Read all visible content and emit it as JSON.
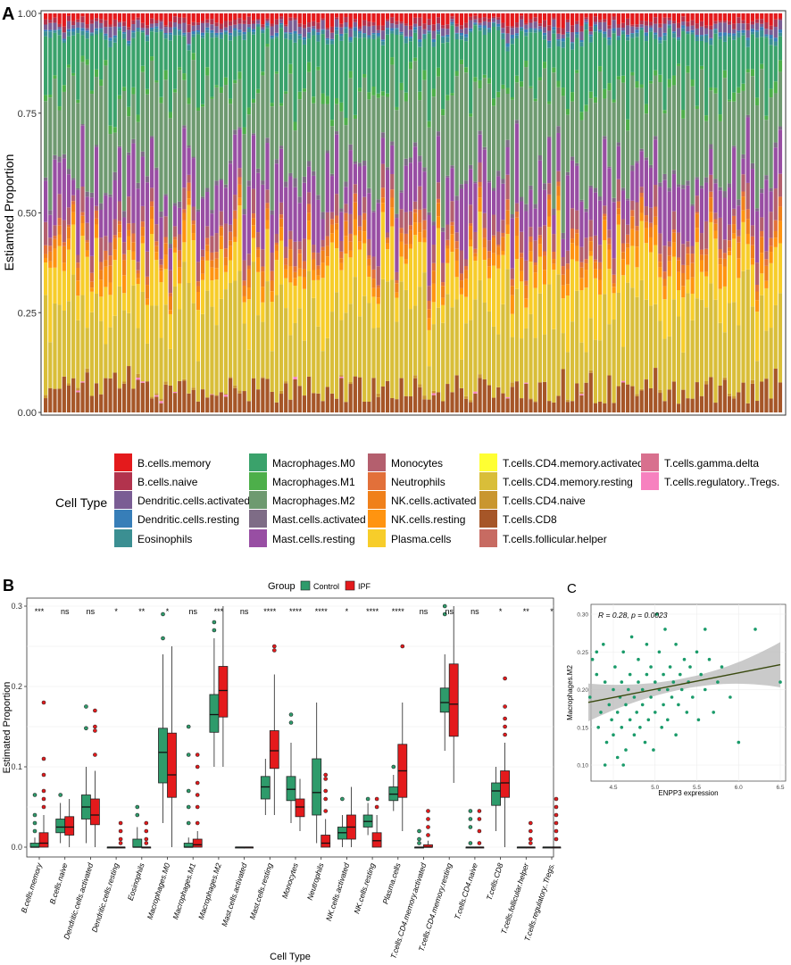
{
  "panels": {
    "a": {
      "letter": "A"
    },
    "b": {
      "letter": "B"
    },
    "c": {
      "letter": "C"
    }
  },
  "colors": {
    "B.cells.memory": "#e41a1c",
    "B.cells.naive": "#b2334d",
    "Dendritic.cells.activated": "#7a5d94",
    "Dendritic.cells.resting": "#377eb8",
    "Eosinophils": "#3b8f92",
    "Macrophages.M0": "#3aa26b",
    "Macrophages.M1": "#4daf4a",
    "Macrophages.M2": "#6e9a70",
    "Mast.cells.activated": "#7e6c86",
    "Mast.cells.resting": "#984ea3",
    "Monocytes": "#b45f6e",
    "Neutrophils": "#e2703a",
    "NK.cells.activated": "#f0801a",
    "NK.cells.resting": "#ff9410",
    "Plasma.cells": "#f7cd2a",
    "T.cells.CD4.memory.activated": "#ffff33",
    "T.cells.CD4.memory.resting": "#d9be39",
    "T.cells.CD4.naive": "#c9962f",
    "T.cells.CD8": "#a65628",
    "T.cells.follicular.helper": "#c76b62",
    "T.cells.gamma.delta": "#d8708e",
    "T.cells.regulatory..Tregs.": "#f781bf",
    "control": "#2e9b6b",
    "ipf": "#e41a1c",
    "fit_line": "#3a4a10",
    "ci_band": "#b8b8b8",
    "scatter_point": "#1a9b6a"
  },
  "chart_data": [
    {
      "id": "A",
      "type": "bar",
      "stacked": true,
      "n_samples": 160,
      "ylabel": "Estiamted Proportion",
      "xlabel": "",
      "ylim": [
        0,
        1
      ],
      "yticks": [
        "0.00",
        "0.25",
        "0.50",
        "0.75",
        "1.00"
      ],
      "legend_title": "Cell Type",
      "legend": [
        "B.cells.memory",
        "B.cells.naive",
        "Dendritic.cells.activated",
        "Dendritic.cells.resting",
        "Eosinophils",
        "Macrophages.M0",
        "Macrophages.M1",
        "Macrophages.M2",
        "Mast.cells.activated",
        "Mast.cells.resting",
        "Monocytes",
        "Neutrophils",
        "NK.cells.activated",
        "NK.cells.resting",
        "Plasma.cells",
        "T.cells.CD4.memory.activated",
        "T.cells.CD4.memory.resting",
        "T.cells.CD4.naive",
        "T.cells.CD8",
        "T.cells.follicular.helper",
        "T.cells.gamma.delta",
        "T.cells.regulatory..Tregs."
      ],
      "mean_proportions": {
        "T.cells.CD8": 0.06,
        "T.cells.regulatory..Tregs.": 0.004,
        "T.cells.CD4.naive": 0.006,
        "T.cells.CD4.memory.resting": 0.19,
        "Plasma.cells": 0.11,
        "NK.cells.resting": 0.03,
        "NK.cells.activated": 0.025,
        "Neutrophils": 0.015,
        "Monocytes": 0.04,
        "Mast.cells.resting": 0.11,
        "Mast.cells.activated": 0.01,
        "Macrophages.M2": 0.2,
        "Macrophages.M1": 0.015,
        "Macrophages.M0": 0.12,
        "Eosinophils": 0.01,
        "Dendritic.cells.resting": 0.005,
        "Dendritic.cells.activated": 0.015,
        "B.cells.naive": 0.01,
        "B.cells.memory": 0.02
      }
    },
    {
      "id": "B",
      "type": "box",
      "ylabel": "Estimated Proportion",
      "xlabel": "Cell Type",
      "ylim": [
        -0.012,
        0.315
      ],
      "yticks": [
        "0.0",
        "0.1",
        "0.2",
        "0.3"
      ],
      "legend_title": "Group",
      "legend": [
        "Control",
        "IPF"
      ],
      "categories": [
        "B.cells.memory",
        "B.cells.naive",
        "Dendritic.cells.activated",
        "Dendritic.cells.resting",
        "Eosinophils",
        "Macrophages.M0",
        "Macrophages.M1",
        "Macrophages.M2",
        "Mast.cells.activated",
        "Mast.cells.resting",
        "Monocytes",
        "Neutrophils",
        "NK.cells.activated",
        "NK.cells.resting",
        "Plasma.cells",
        "T.cells.CD4.memory.activated",
        "T.cells.CD4.memory.resting",
        "T.cells.CD4.naive",
        "T.cells.CD8",
        "T.cells.follicular.helper",
        "T.cells.regulatory..Tregs."
      ],
      "significance": [
        "***",
        "ns",
        "ns",
        "*",
        "**",
        "*",
        "ns",
        "***",
        "ns",
        "****",
        "****",
        "****",
        "*",
        "****",
        "****",
        "ns",
        "ns",
        "ns",
        "*",
        "**",
        "*"
      ],
      "series": [
        {
          "name": "Control",
          "boxes": [
            {
              "q1": 0.0,
              "med": 0.0,
              "q3": 0.005,
              "lo": 0.0,
              "hi": 0.012,
              "out": [
                0.02,
                0.03,
                0.04,
                0.065
              ]
            },
            {
              "q1": 0.018,
              "med": 0.025,
              "q3": 0.035,
              "lo": 0.005,
              "hi": 0.055,
              "out": [
                0.065
              ]
            },
            {
              "q1": 0.035,
              "med": 0.05,
              "q3": 0.065,
              "lo": 0.005,
              "hi": 0.1,
              "out": [
                0.148,
                0.175
              ]
            },
            {
              "q1": 0.0,
              "med": 0.0,
              "q3": 0.0,
              "lo": 0.0,
              "hi": 0.0,
              "out": []
            },
            {
              "q1": 0.0,
              "med": 0.0,
              "q3": 0.01,
              "lo": 0.0,
              "hi": 0.025,
              "out": [
                0.04,
                0.05
              ]
            },
            {
              "q1": 0.08,
              "med": 0.118,
              "q3": 0.148,
              "lo": 0.03,
              "hi": 0.24,
              "out": [
                0.26,
                0.29
              ]
            },
            {
              "q1": 0.0,
              "med": 0.0,
              "q3": 0.005,
              "lo": 0.0,
              "hi": 0.012,
              "out": [
                0.03,
                0.05,
                0.07,
                0.115,
                0.15
              ]
            },
            {
              "q1": 0.143,
              "med": 0.165,
              "q3": 0.19,
              "lo": 0.1,
              "hi": 0.26,
              "out": [
                0.27,
                0.28
              ]
            },
            {
              "q1": 0.0,
              "med": 0.0,
              "q3": 0.0,
              "lo": 0.0,
              "hi": 0.0,
              "out": []
            },
            {
              "q1": 0.06,
              "med": 0.075,
              "q3": 0.088,
              "lo": 0.04,
              "hi": 0.11,
              "out": []
            },
            {
              "q1": 0.058,
              "med": 0.072,
              "q3": 0.088,
              "lo": 0.03,
              "hi": 0.13,
              "out": [
                0.155,
                0.165
              ]
            },
            {
              "q1": 0.04,
              "med": 0.068,
              "q3": 0.11,
              "lo": 0.005,
              "hi": 0.18,
              "out": []
            },
            {
              "q1": 0.01,
              "med": 0.018,
              "q3": 0.025,
              "lo": 0.0,
              "hi": 0.04,
              "out": [
                0.06
              ]
            },
            {
              "q1": 0.025,
              "med": 0.032,
              "q3": 0.04,
              "lo": 0.015,
              "hi": 0.055,
              "out": [
                0.06
              ]
            },
            {
              "q1": 0.058,
              "med": 0.066,
              "q3": 0.075,
              "lo": 0.045,
              "hi": 0.09,
              "out": [
                0.1
              ]
            },
            {
              "q1": 0.0,
              "med": 0.0,
              "q3": 0.0,
              "lo": 0.0,
              "hi": 0.0,
              "out": [
                0.005,
                0.01,
                0.02
              ]
            },
            {
              "q1": 0.168,
              "med": 0.18,
              "q3": 0.198,
              "lo": 0.12,
              "hi": 0.24,
              "out": [
                0.29,
                0.3
              ]
            },
            {
              "q1": 0.0,
              "med": 0.0,
              "q3": 0.0,
              "lo": 0.0,
              "hi": 0.0,
              "out": [
                0.005,
                0.025,
                0.035,
                0.045
              ]
            },
            {
              "q1": 0.052,
              "med": 0.07,
              "q3": 0.08,
              "lo": 0.02,
              "hi": 0.1,
              "out": []
            },
            {
              "q1": 0.0,
              "med": 0.0,
              "q3": 0.0,
              "lo": 0.0,
              "hi": 0.0,
              "out": []
            },
            {
              "q1": 0.0,
              "med": 0.0,
              "q3": 0.0,
              "lo": 0.0,
              "hi": 0.0,
              "out": []
            }
          ]
        },
        {
          "name": "IPF",
          "boxes": [
            {
              "q1": 0.0,
              "med": 0.005,
              "q3": 0.018,
              "lo": 0.0,
              "hi": 0.04,
              "out": [
                0.05,
                0.06,
                0.07,
                0.09,
                0.11,
                0.18
              ]
            },
            {
              "q1": 0.015,
              "med": 0.025,
              "q3": 0.038,
              "lo": 0.0,
              "hi": 0.06,
              "out": []
            },
            {
              "q1": 0.028,
              "med": 0.04,
              "q3": 0.06,
              "lo": 0.0,
              "hi": 0.095,
              "out": [
                0.115,
                0.145,
                0.15,
                0.17
              ]
            },
            {
              "q1": 0.0,
              "med": 0.0,
              "q3": 0.0,
              "lo": 0.0,
              "hi": 0.0,
              "out": [
                0.005,
                0.01,
                0.02,
                0.03
              ]
            },
            {
              "q1": 0.0,
              "med": 0.0,
              "q3": 0.0,
              "lo": 0.0,
              "hi": 0.0,
              "out": [
                0.005,
                0.01,
                0.02,
                0.03
              ]
            },
            {
              "q1": 0.062,
              "med": 0.09,
              "q3": 0.142,
              "lo": 0.0,
              "hi": 0.25,
              "out": []
            },
            {
              "q1": 0.0,
              "med": 0.003,
              "q3": 0.01,
              "lo": 0.0,
              "hi": 0.02,
              "out": [
                0.03,
                0.05,
                0.065,
                0.08,
                0.1,
                0.115
              ]
            },
            {
              "q1": 0.162,
              "med": 0.195,
              "q3": 0.225,
              "lo": 0.1,
              "hi": 0.3,
              "out": []
            },
            {
              "q1": 0.0,
              "med": 0.0,
              "q3": 0.0,
              "lo": 0.0,
              "hi": 0.0,
              "out": []
            },
            {
              "q1": 0.098,
              "med": 0.12,
              "q3": 0.145,
              "lo": 0.04,
              "hi": 0.215,
              "out": [
                0.245,
                0.25
              ]
            },
            {
              "q1": 0.038,
              "med": 0.05,
              "q3": 0.06,
              "lo": 0.02,
              "hi": 0.085,
              "out": []
            },
            {
              "q1": 0.0,
              "med": 0.005,
              "q3": 0.015,
              "lo": 0.0,
              "hi": 0.035,
              "out": [
                0.045,
                0.06,
                0.07,
                0.085,
                0.09
              ]
            },
            {
              "q1": 0.01,
              "med": 0.025,
              "q3": 0.04,
              "lo": 0.0,
              "hi": 0.075,
              "out": []
            },
            {
              "q1": 0.0,
              "med": 0.008,
              "q3": 0.018,
              "lo": 0.0,
              "hi": 0.04,
              "out": [
                0.05,
                0.06
              ]
            },
            {
              "q1": 0.062,
              "med": 0.095,
              "q3": 0.128,
              "lo": 0.02,
              "hi": 0.18,
              "out": [
                0.25
              ]
            },
            {
              "q1": 0.0,
              "med": 0.0,
              "q3": 0.003,
              "lo": 0.0,
              "hi": 0.008,
              "out": [
                0.015,
                0.025,
                0.035,
                0.045
              ]
            },
            {
              "q1": 0.138,
              "med": 0.178,
              "q3": 0.228,
              "lo": 0.08,
              "hi": 0.3,
              "out": []
            },
            {
              "q1": 0.0,
              "med": 0.0,
              "q3": 0.0,
              "lo": 0.0,
              "hi": 0.0,
              "out": [
                0.005,
                0.02,
                0.035,
                0.045
              ]
            },
            {
              "q1": 0.062,
              "med": 0.08,
              "q3": 0.095,
              "lo": 0.0,
              "hi": 0.13,
              "out": [
                0.14,
                0.15,
                0.16,
                0.175,
                0.21
              ]
            },
            {
              "q1": 0.0,
              "med": 0.0,
              "q3": 0.0,
              "lo": 0.0,
              "hi": 0.0,
              "out": [
                0.005,
                0.01,
                0.02,
                0.03
              ]
            },
            {
              "q1": 0.0,
              "med": 0.0,
              "q3": 0.0,
              "lo": 0.0,
              "hi": 0.0,
              "out": [
                0.01,
                0.02,
                0.03,
                0.04,
                0.05,
                0.06
              ]
            }
          ]
        }
      ]
    },
    {
      "id": "C",
      "type": "scatter",
      "xlabel": "ENPP3 expression",
      "ylabel": "Macrophages.M2",
      "annotation": "R = 0.28, p = 0.0023",
      "xlim": [
        4.1,
        6.55
      ],
      "ylim": [
        0.095,
        0.305
      ],
      "xticks": [
        "4.5",
        "5.0",
        "5.5",
        "6.0",
        "6.5"
      ],
      "yticks": [
        "0.10",
        "0.15",
        "0.20",
        "0.25",
        "0.30"
      ],
      "fit": {
        "x": [
          4.2,
          6.5
        ],
        "y": [
          0.183,
          0.233
        ],
        "ci_at_start": 0.025,
        "ci_at_mid": 0.007,
        "ci_at_end": 0.03
      },
      "points": [
        [
          4.22,
          0.19
        ],
        [
          4.25,
          0.24
        ],
        [
          4.3,
          0.22
        ],
        [
          4.32,
          0.15
        ],
        [
          4.35,
          0.17
        ],
        [
          4.38,
          0.26
        ],
        [
          4.4,
          0.21
        ],
        [
          4.42,
          0.13
        ],
        [
          4.45,
          0.18
        ],
        [
          4.48,
          0.16
        ],
        [
          4.5,
          0.14
        ],
        [
          4.5,
          0.2
        ],
        [
          4.52,
          0.23
        ],
        [
          4.55,
          0.11
        ],
        [
          4.55,
          0.17
        ],
        [
          4.58,
          0.19
        ],
        [
          4.6,
          0.21
        ],
        [
          4.6,
          0.15
        ],
        [
          4.62,
          0.25
        ],
        [
          4.65,
          0.12
        ],
        [
          4.65,
          0.18
        ],
        [
          4.68,
          0.2
        ],
        [
          4.7,
          0.16
        ],
        [
          4.7,
          0.22
        ],
        [
          4.72,
          0.27
        ],
        [
          4.75,
          0.14
        ],
        [
          4.75,
          0.19
        ],
        [
          4.78,
          0.17
        ],
        [
          4.8,
          0.21
        ],
        [
          4.8,
          0.24
        ],
        [
          4.82,
          0.15
        ],
        [
          4.85,
          0.18
        ],
        [
          4.85,
          0.2
        ],
        [
          4.88,
          0.13
        ],
        [
          4.9,
          0.22
        ],
        [
          4.9,
          0.26
        ],
        [
          4.92,
          0.16
        ],
        [
          4.95,
          0.19
        ],
        [
          4.95,
          0.23
        ],
        [
          4.98,
          0.12
        ],
        [
          5.0,
          0.21
        ],
        [
          5.0,
          0.17
        ],
        [
          5.02,
          0.3
        ],
        [
          5.05,
          0.2
        ],
        [
          5.05,
          0.25
        ],
        [
          5.08,
          0.15
        ],
        [
          5.1,
          0.22
        ],
        [
          5.1,
          0.18
        ],
        [
          5.12,
          0.28
        ],
        [
          5.15,
          0.2
        ],
        [
          5.15,
          0.16
        ],
        [
          5.18,
          0.23
        ],
        [
          5.2,
          0.19
        ],
        [
          5.22,
          0.21
        ],
        [
          5.25,
          0.26
        ],
        [
          5.25,
          0.14
        ],
        [
          5.28,
          0.18
        ],
        [
          5.3,
          0.22
        ],
        [
          5.32,
          0.2
        ],
        [
          5.35,
          0.24
        ],
        [
          5.38,
          0.17
        ],
        [
          5.4,
          0.21
        ],
        [
          5.42,
          0.23
        ],
        [
          5.45,
          0.19
        ],
        [
          5.5,
          0.25
        ],
        [
          5.52,
          0.16
        ],
        [
          5.55,
          0.22
        ],
        [
          5.6,
          0.2
        ],
        [
          5.65,
          0.24
        ],
        [
          5.7,
          0.17
        ],
        [
          5.75,
          0.21
        ],
        [
          5.8,
          0.23
        ],
        [
          5.9,
          0.19
        ],
        [
          6.0,
          0.13
        ],
        [
          6.2,
          0.28
        ],
        [
          6.5,
          0.21
        ],
        [
          4.4,
          0.1
        ],
        [
          4.62,
          0.1
        ],
        [
          5.6,
          0.28
        ],
        [
          4.3,
          0.25
        ]
      ]
    }
  ]
}
